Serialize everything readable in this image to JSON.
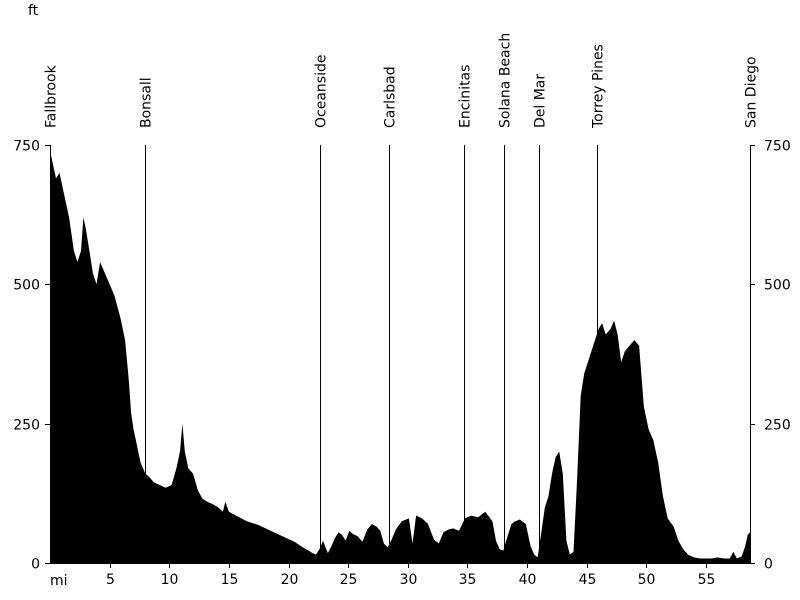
{
  "chart_data": {
    "type": "area",
    "title": "",
    "x_unit_label": "mi",
    "y_unit_label": "ft",
    "xlim": [
      0,
      58.7
    ],
    "ylim": [
      0,
      750
    ],
    "x_ticks": [
      {
        "value": 5,
        "label": "5"
      },
      {
        "value": 10,
        "label": "10"
      },
      {
        "value": 15,
        "label": "15"
      },
      {
        "value": 20,
        "label": "20"
      },
      {
        "value": 25,
        "label": "25"
      },
      {
        "value": 30,
        "label": "30"
      },
      {
        "value": 35,
        "label": "35"
      },
      {
        "value": 40,
        "label": "40"
      },
      {
        "value": 45,
        "label": "45"
      },
      {
        "value": 50,
        "label": "50"
      },
      {
        "value": 55,
        "label": "55"
      }
    ],
    "y_ticks": [
      {
        "value": 0,
        "label": "0"
      },
      {
        "value": 250,
        "label": "250"
      },
      {
        "value": 500,
        "label": "500"
      },
      {
        "value": 750,
        "label": "750"
      }
    ],
    "places": [
      {
        "name": "Fallbrook",
        "mile": 0
      },
      {
        "name": "Bonsall",
        "mile": 8.0
      },
      {
        "name": "Oceanside",
        "mile": 22.6
      },
      {
        "name": "Carlsbad",
        "mile": 28.4
      },
      {
        "name": "Encinitas",
        "mile": 34.7
      },
      {
        "name": "Solana Beach",
        "mile": 38.1
      },
      {
        "name": "Del Mar",
        "mile": 41.0
      },
      {
        "name": "Torrey Pines",
        "mile": 45.9
      },
      {
        "name": "San Diego",
        "mile": 58.7
      }
    ],
    "series": [
      {
        "color": "#000000",
        "x": [
          0,
          0.2,
          0.5,
          0.8,
          1.2,
          1.6,
          2.0,
          2.3,
          2.6,
          2.8,
          3.0,
          3.3,
          3.6,
          3.9,
          4.2,
          4.6,
          5.0,
          5.4,
          5.9,
          6.3,
          6.6,
          6.8,
          7.0,
          7.2,
          7.4,
          7.6,
          7.8,
          8.0,
          8.3,
          8.7,
          9.2,
          9.7,
          10.2,
          10.6,
          10.9,
          11.1,
          11.3,
          11.6,
          12.0,
          12.4,
          12.8,
          13.2,
          13.7,
          14.1,
          14.5,
          14.7,
          15.0,
          15.6,
          16.5,
          17.5,
          18.5,
          19.5,
          20.5,
          21.2,
          21.7,
          22.0,
          22.3,
          22.6,
          22.9,
          23.1,
          23.3,
          23.6,
          23.9,
          24.2,
          24.5,
          24.8,
          25.1,
          25.4,
          25.8,
          26.2,
          26.6,
          27.0,
          27.4,
          27.7,
          28.0,
          28.3,
          28.6,
          29.0,
          29.5,
          30.1,
          30.4,
          30.7,
          31.2,
          31.7,
          32.2,
          32.6,
          33.0,
          33.4,
          33.8,
          34.3,
          34.8,
          35.3,
          35.9,
          36.5,
          37.1,
          37.4,
          37.7,
          38.0,
          38.4,
          38.7,
          39.0,
          39.4,
          39.9,
          40.3,
          40.6,
          40.9,
          41.2,
          41.5,
          41.8,
          42.1,
          42.4,
          42.7,
          43.0,
          43.3,
          43.6,
          43.9,
          44.2,
          44.5,
          44.8,
          45.1,
          45.4,
          45.7,
          46.0,
          46.3,
          46.6,
          47.0,
          47.3,
          47.6,
          47.9,
          48.2,
          48.6,
          49.0,
          49.4,
          49.8,
          50.2,
          50.6,
          51.0,
          51.4,
          51.8,
          52.3,
          52.7,
          53.1,
          53.5,
          54.0,
          54.5,
          55.0,
          55.5,
          56.0,
          56.5,
          57.0,
          57.3,
          57.6,
          58.0,
          58.3,
          58.5,
          58.7
        ],
        "y": [
          740,
          720,
          690,
          700,
          660,
          620,
          560,
          540,
          560,
          620,
          600,
          560,
          520,
          500,
          540,
          520,
          500,
          480,
          440,
          400,
          330,
          270,
          240,
          220,
          200,
          180,
          170,
          160,
          155,
          145,
          140,
          135,
          140,
          170,
          200,
          250,
          200,
          170,
          160,
          130,
          115,
          110,
          105,
          100,
          92,
          110,
          92,
          85,
          75,
          68,
          58,
          48,
          38,
          28,
          22,
          18,
          15,
          25,
          40,
          28,
          18,
          30,
          45,
          55,
          50,
          40,
          58,
          52,
          48,
          38,
          60,
          70,
          65,
          58,
          35,
          28,
          40,
          60,
          75,
          80,
          35,
          85,
          80,
          70,
          42,
          35,
          55,
          60,
          62,
          58,
          80,
          85,
          82,
          92,
          75,
          40,
          25,
          22,
          50,
          70,
          75,
          78,
          70,
          30,
          15,
          10,
          55,
          100,
          120,
          160,
          190,
          200,
          160,
          40,
          15,
          20,
          150,
          300,
          340,
          360,
          380,
          400,
          420,
          430,
          410,
          420,
          435,
          410,
          360,
          380,
          390,
          400,
          390,
          280,
          240,
          220,
          180,
          120,
          80,
          65,
          40,
          25,
          15,
          10,
          8,
          8,
          8,
          10,
          8,
          8,
          20,
          8,
          12,
          30,
          50,
          55
        ]
      }
    ]
  }
}
